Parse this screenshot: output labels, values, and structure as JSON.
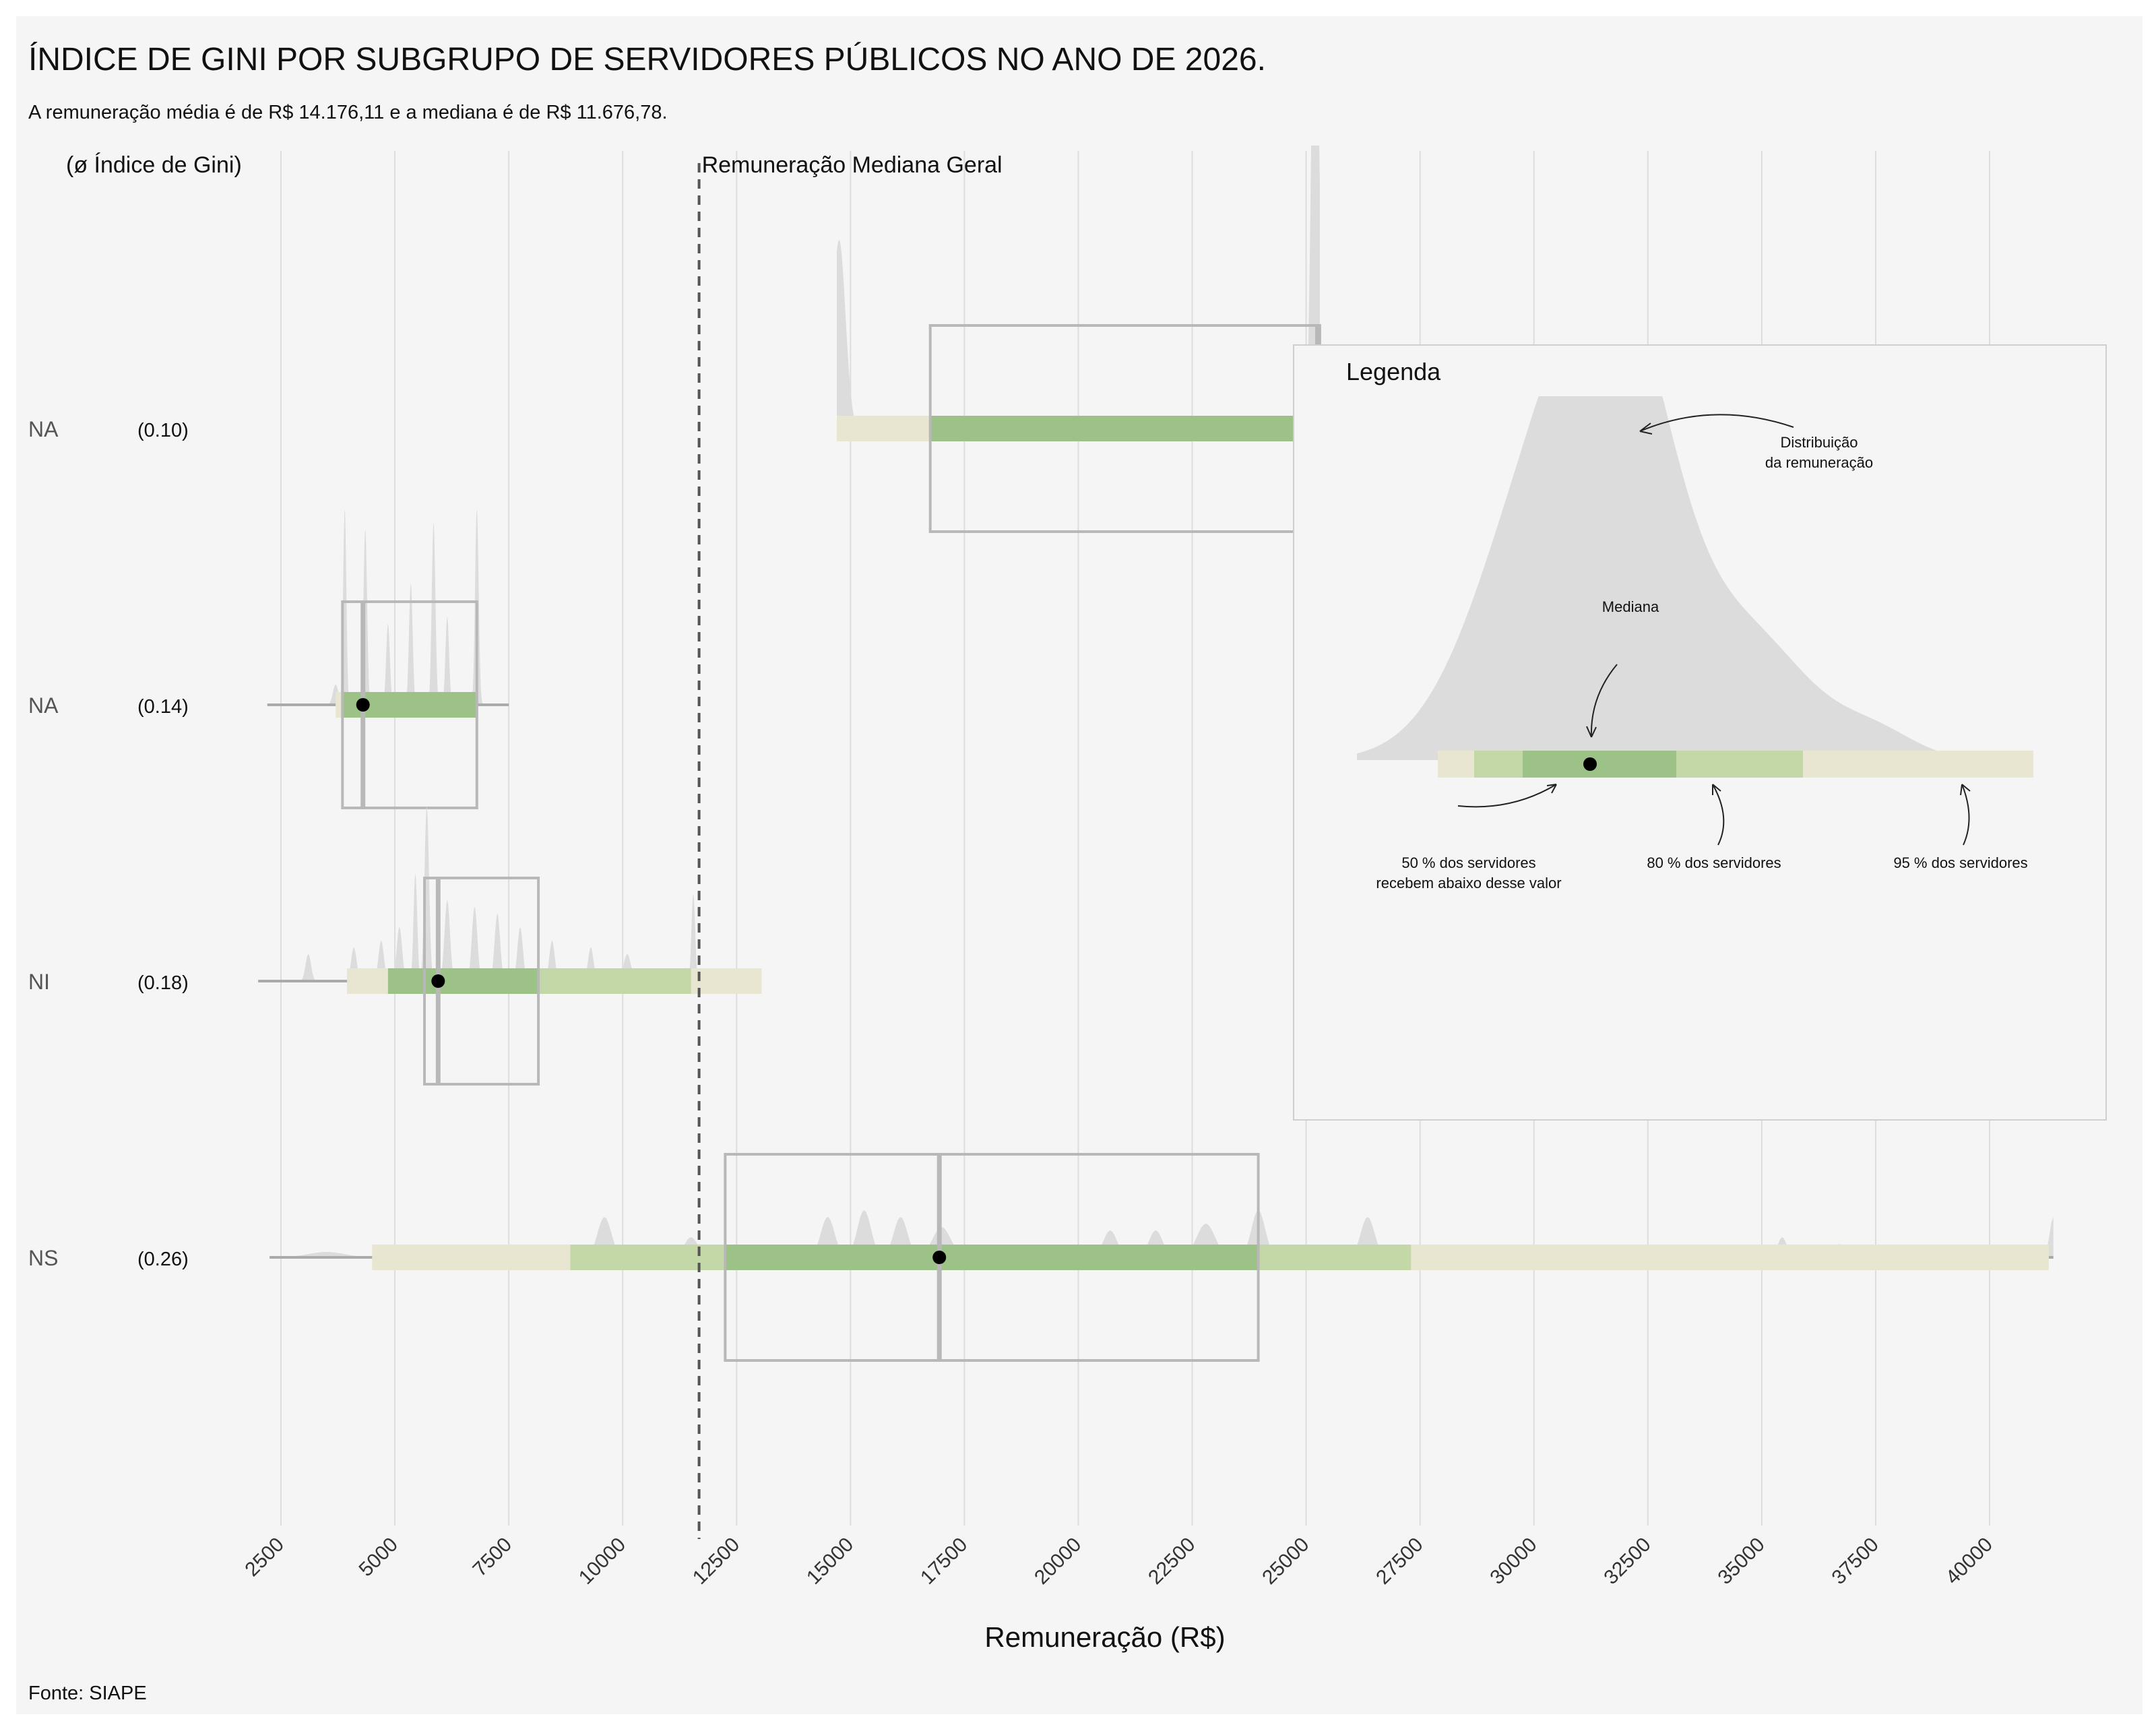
{
  "title": "ÍNDICE DE GINI POR SUBGRUPO DE SERVIDORES PÚBLICOS NO ANO DE 2026.",
  "subtitle": "A remuneração média é de R$ 14.176,11 e a mediana é de R$ 11.676,78.",
  "gini_header": "(ø Índice de Gini)",
  "median_line_label": "Remuneração Mediana Geral",
  "source": "Fonte: SIAPE",
  "colors": {
    "background": "#f5f5f5",
    "density": "#dcdcdc",
    "band95": "#e8e6d0",
    "band80": "#c4d7a6",
    "band50": "#9cc287",
    "iqr_box": "#b8b8b8",
    "grid": "#dddddd",
    "median_line": "#555555",
    "point": "#000000"
  },
  "chart_data": {
    "type": "ridgeline-interval",
    "xlabel": "Remuneração (R$)",
    "ylabel": "",
    "xlim": [
      1000,
      41500
    ],
    "x_ticks": [
      2500,
      5000,
      7500,
      10000,
      12500,
      15000,
      17500,
      20000,
      22500,
      25000,
      27500,
      30000,
      32500,
      35000,
      37500,
      40000
    ],
    "overall_median": 11676.78,
    "overall_mean": 14176.11,
    "grid": true,
    "groups": [
      {
        "label": "NA",
        "gini": "(0.10)",
        "min": null,
        "max": null,
        "median": 25250,
        "p95": [
          14700,
          25300
        ],
        "p80": [
          16750,
          25250
        ],
        "p50": [
          16750,
          25250
        ],
        "iqr": [
          16750,
          25300
        ],
        "peaks": [
          [
            14750,
            280,
            140
          ],
          [
            19500,
            18,
            500
          ],
          [
            25200,
            800,
            80
          ]
        ]
      },
      {
        "label": "NA",
        "gini": "(0.14)",
        "min": 2200,
        "max": 7500,
        "median": 4300,
        "p95": [
          3700,
          6800
        ],
        "p80": [
          3850,
          6800
        ],
        "p50": [
          3850,
          6800
        ],
        "iqr": [
          3850,
          6800
        ],
        "peaks": [
          [
            3700,
            30,
            60
          ],
          [
            3900,
            290,
            35
          ],
          [
            4350,
            260,
            40
          ],
          [
            4850,
            120,
            40
          ],
          [
            5350,
            180,
            40
          ],
          [
            5850,
            270,
            40
          ],
          [
            6150,
            130,
            40
          ],
          [
            6800,
            290,
            40
          ]
        ]
      },
      {
        "label": "NI",
        "gini": "(0.18)",
        "min": 2000,
        "max": 6500,
        "median": 5950,
        "p95": [
          3950,
          13050
        ],
        "p80": [
          4850,
          11500
        ],
        "p50": [
          4850,
          8150
        ],
        "iqr": [
          5650,
          8150
        ],
        "peaks": [
          [
            3100,
            40,
            60
          ],
          [
            4100,
            50,
            60
          ],
          [
            4700,
            60,
            60
          ],
          [
            5100,
            80,
            60
          ],
          [
            5450,
            160,
            40
          ],
          [
            5700,
            260,
            50
          ],
          [
            6150,
            120,
            60
          ],
          [
            6750,
            110,
            60
          ],
          [
            7250,
            100,
            60
          ],
          [
            7750,
            80,
            60
          ],
          [
            8450,
            60,
            60
          ],
          [
            9300,
            50,
            60
          ],
          [
            10100,
            40,
            80
          ],
          [
            11550,
            130,
            40
          ],
          [
            14550,
            40,
            60
          ],
          [
            16950,
            30,
            40
          ]
        ]
      },
      {
        "label": "NS",
        "gini": "(0.26)",
        "min": 2250,
        "max": 41400,
        "median": 16950,
        "p95": [
          4500,
          41300
        ],
        "p80": [
          8850,
          27300
        ],
        "p50": [
          12250,
          23950
        ],
        "iqr": [
          12250,
          23950
        ],
        "peaks": [
          [
            3500,
            8,
            400
          ],
          [
            9600,
            60,
            150
          ],
          [
            11500,
            30,
            150
          ],
          [
            14500,
            60,
            150
          ],
          [
            15300,
            70,
            150
          ],
          [
            16100,
            60,
            150
          ],
          [
            17000,
            45,
            200
          ],
          [
            20700,
            40,
            150
          ],
          [
            21700,
            40,
            150
          ],
          [
            22800,
            50,
            200
          ],
          [
            23950,
            70,
            150
          ],
          [
            26350,
            60,
            150
          ],
          [
            35450,
            30,
            100
          ],
          [
            36700,
            20,
            100
          ],
          [
            41400,
            60,
            80
          ]
        ]
      }
    ]
  },
  "legend": {
    "title": "Legenda",
    "dist_label_line1": "Distribuição",
    "dist_label_line2": "da remuneração",
    "median_label": "Mediana",
    "p50_line1": "50 % dos servidores",
    "p50_line2": "recebem abaixo desse valor",
    "p80_label": "80 % dos servidores",
    "p95_label": "95 % dos servidores"
  }
}
